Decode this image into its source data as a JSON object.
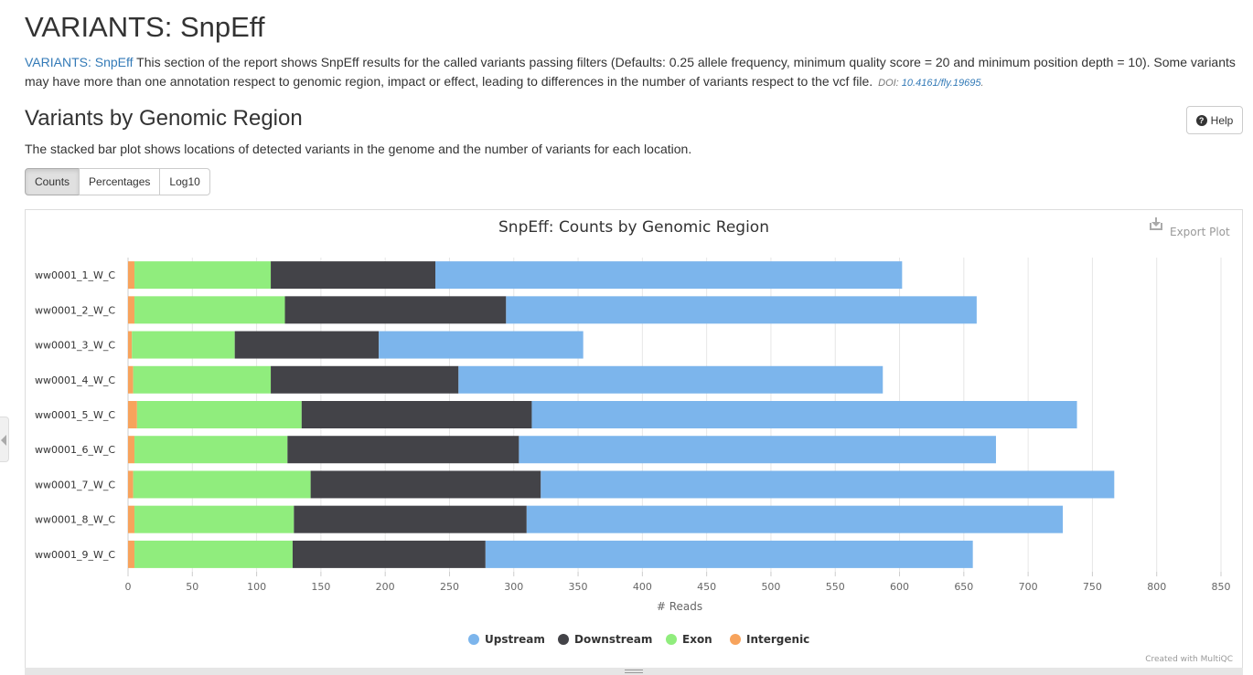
{
  "page": {
    "title": "VARIANTS: SnpEff",
    "intro_link": "VARIANTS: SnpEff",
    "intro_text": " This section of the report shows SnpEff results for the called variants passing filters (Defaults: 0.25 allele frequency, minimum quality score = 20 and minimum position depth = 10). Some variants may have more than one annotation respect to genomic region, impact or effect, leading to differences in the number of variants respect to the vcf file.",
    "doi_prefix": "DOI: ",
    "doi_link": "10.4161/fly.19695",
    "doi_suffix": ".",
    "section_title": "Variants by Genomic Region",
    "help_label": "Help",
    "help_icon": "question-circle-icon",
    "description": "The stacked bar plot shows locations of detected variants in the genome and the number of variants for each location.",
    "toggle_buttons": [
      "Counts",
      "Percentages",
      "Log10"
    ],
    "active_toggle": "Counts",
    "export_label": "Export Plot",
    "export_icon": "download-icon",
    "credit": "Created with MultiQC"
  },
  "chart_data": {
    "type": "bar",
    "orientation": "horizontal",
    "stacked": true,
    "title": "SnpEff: Counts by Genomic Region",
    "xlabel": "# Reads",
    "ylabel": "",
    "xlim": [
      0,
      850
    ],
    "xticks": [
      0,
      50,
      100,
      150,
      200,
      250,
      300,
      350,
      400,
      450,
      500,
      550,
      600,
      650,
      700,
      750,
      800,
      850
    ],
    "grid": true,
    "legend_position": "bottom",
    "categories": [
      "ww0001_1_W_C",
      "ww0001_2_W_C",
      "ww0001_3_W_C",
      "ww0001_4_W_C",
      "ww0001_5_W_C",
      "ww0001_6_W_C",
      "ww0001_7_W_C",
      "ww0001_8_W_C",
      "ww0001_9_W_C"
    ],
    "series": [
      {
        "name": "Intergenic",
        "color": "#f7a35c",
        "values": [
          5,
          5,
          3,
          4,
          7,
          5,
          4,
          5,
          5
        ]
      },
      {
        "name": "Exon",
        "color": "#90ed7d",
        "values": [
          106,
          117,
          80,
          107,
          128,
          119,
          138,
          124,
          123
        ]
      },
      {
        "name": "Downstream",
        "color": "#434348",
        "values": [
          128,
          172,
          112,
          146,
          179,
          180,
          179,
          181,
          150
        ]
      },
      {
        "name": "Upstream",
        "color": "#7cb5ec",
        "values": [
          363,
          366,
          159,
          330,
          424,
          371,
          446,
          417,
          379
        ]
      }
    ],
    "legend_order": [
      "Upstream",
      "Downstream",
      "Exon",
      "Intergenic"
    ]
  }
}
